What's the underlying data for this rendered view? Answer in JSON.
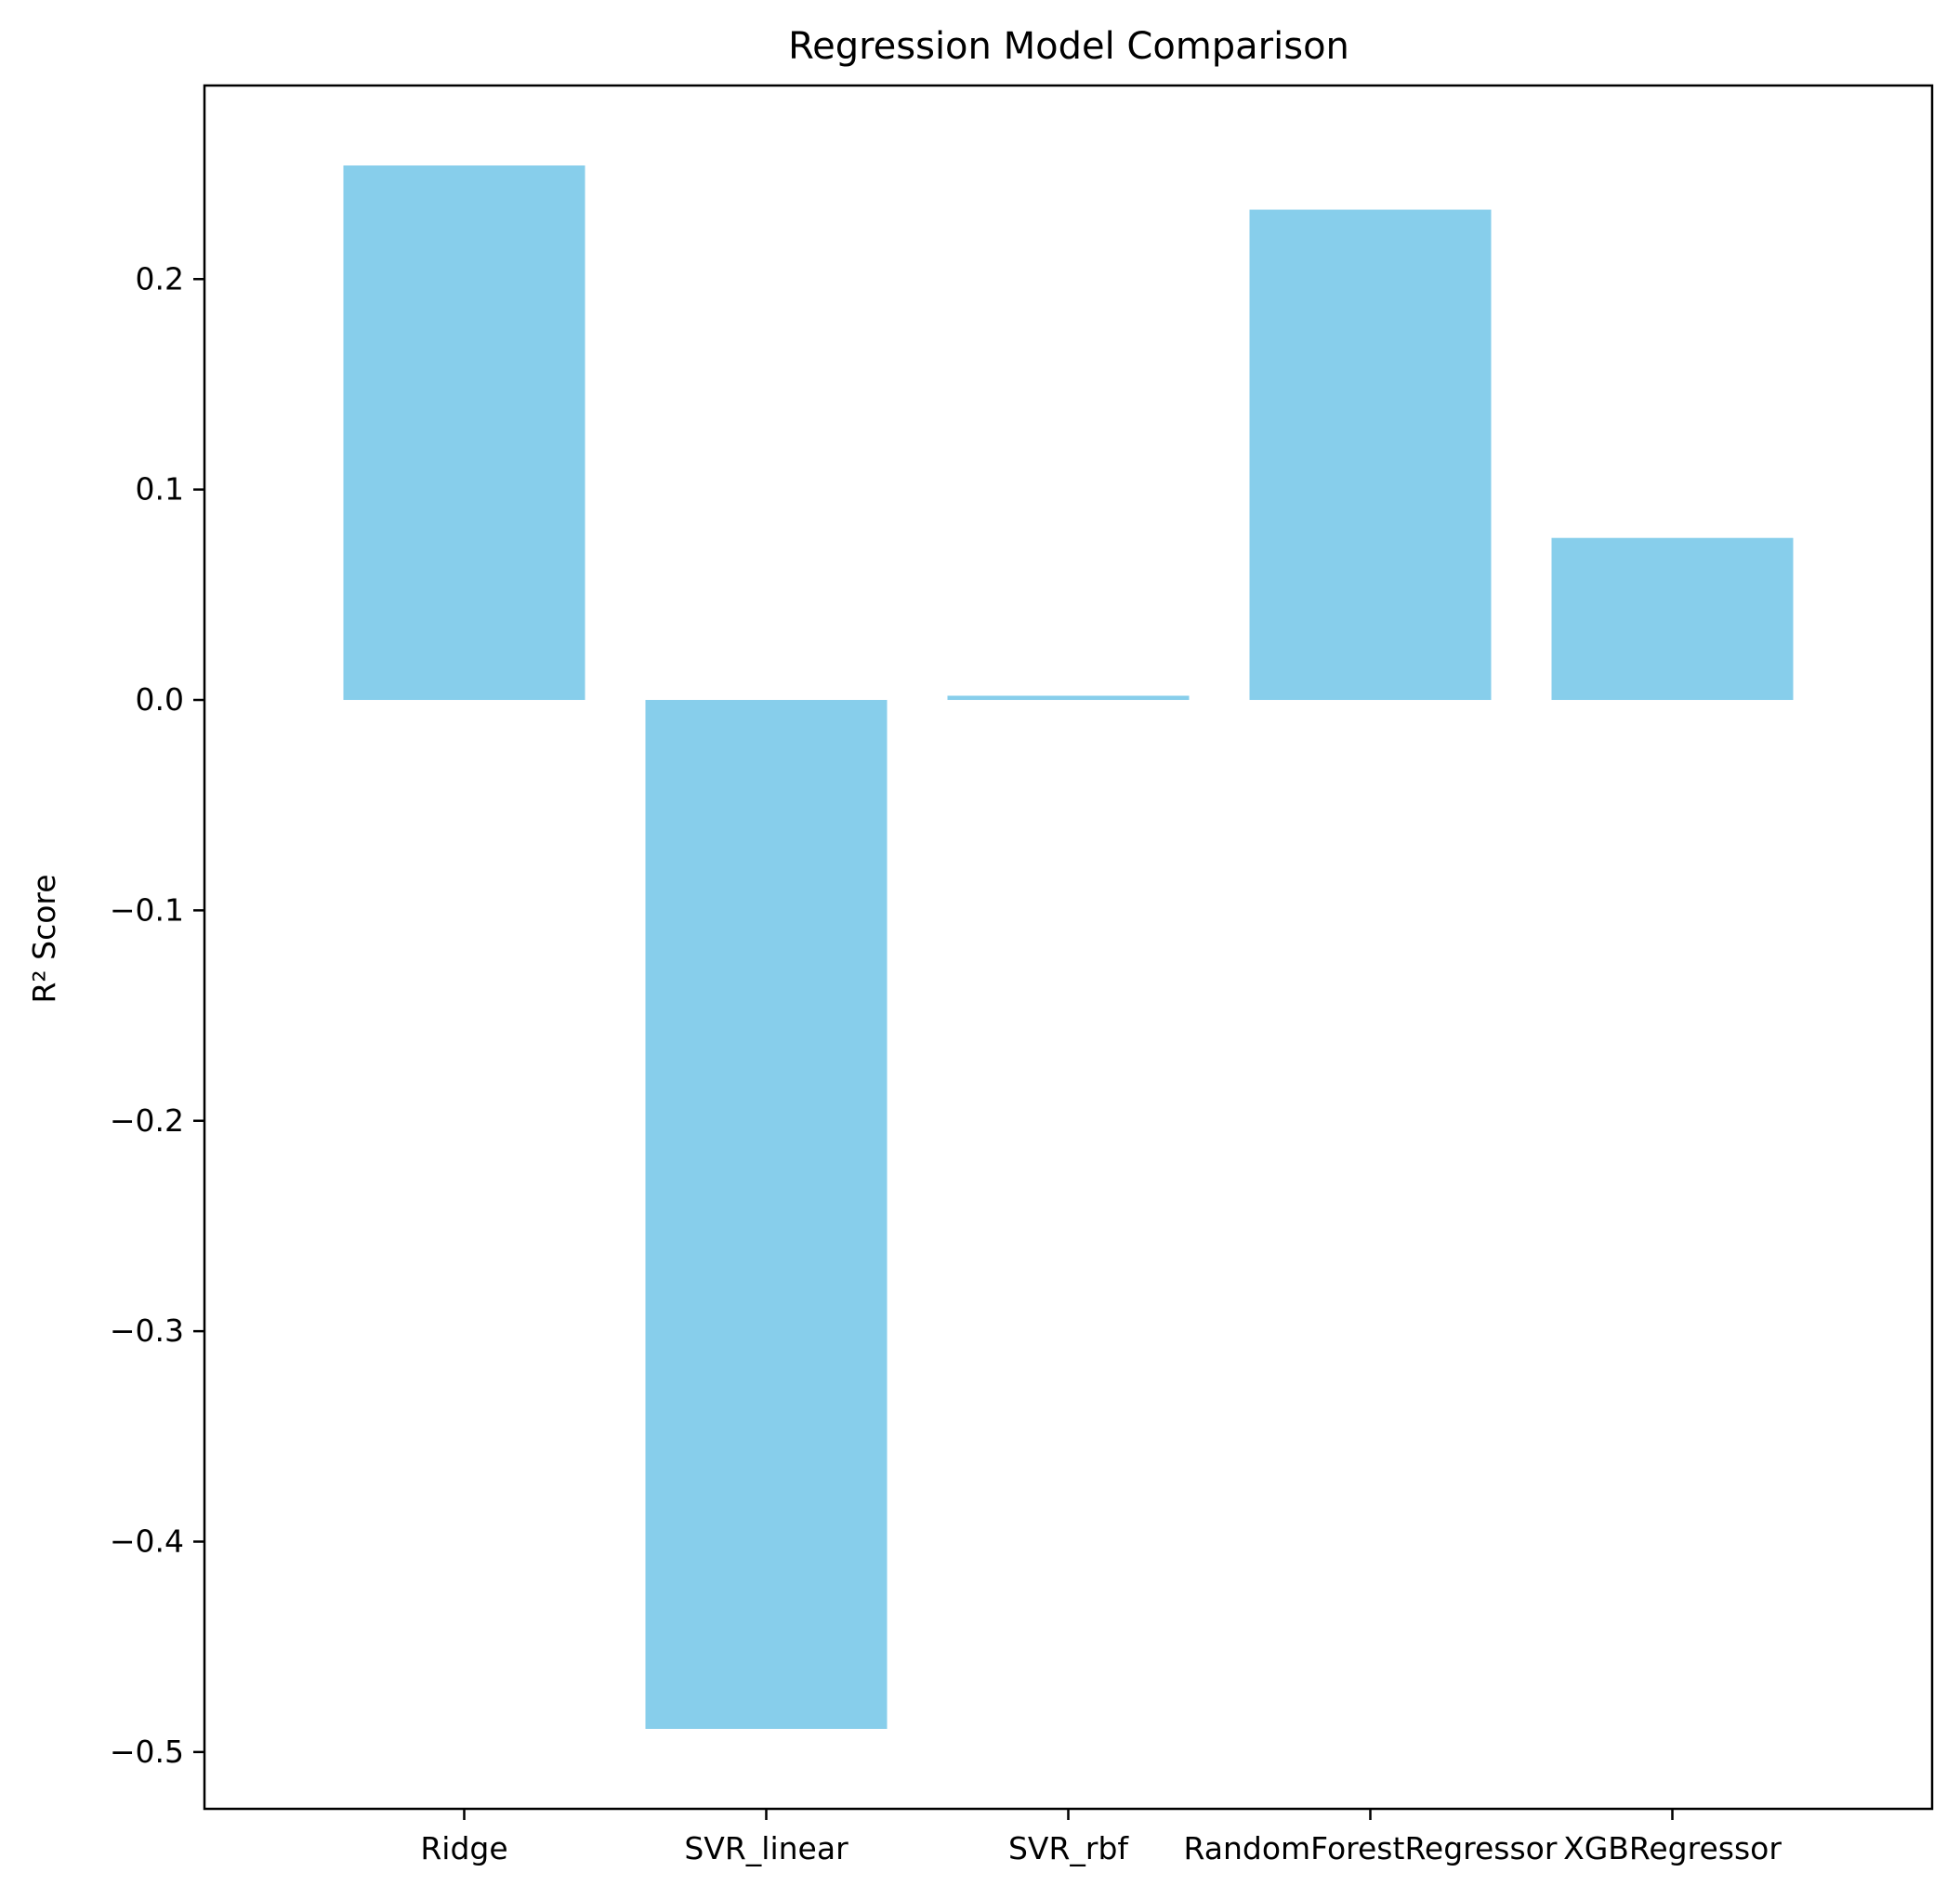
{
  "chart_data": {
    "type": "bar",
    "title": "Regression Model Comparison",
    "xlabel": "",
    "ylabel": "R² Score",
    "categories": [
      "Ridge",
      "SVR_linear",
      "SVR_rbf",
      "RandomForestRegressor",
      "XGBRegressor"
    ],
    "values": [
      0.254,
      -0.489,
      0.002,
      0.233,
      0.077
    ],
    "ylim": [
      -0.527,
      0.292
    ],
    "yticks": [
      0.2,
      0.1,
      0.0,
      -0.1,
      -0.2,
      -0.3,
      -0.4,
      -0.5
    ],
    "ytick_labels": [
      "0.2",
      "0.1",
      "0.0",
      "−0.1",
      "−0.2",
      "−0.3",
      "−0.4",
      "−0.5"
    ],
    "grid": false,
    "legend": null,
    "bar_color": "#87CEEB"
  }
}
